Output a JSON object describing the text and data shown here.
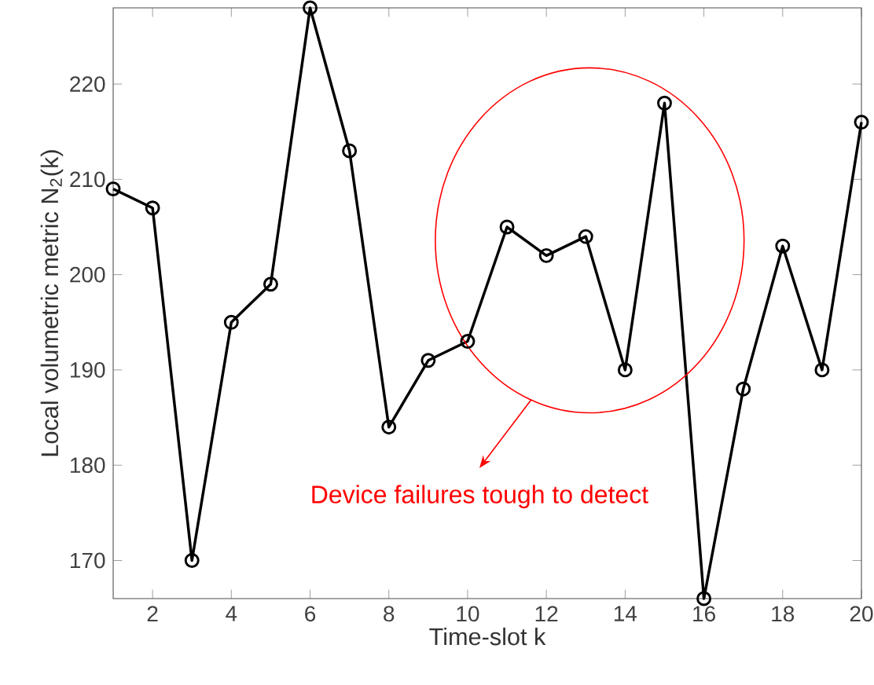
{
  "chart_data": {
    "type": "line",
    "xlabel": "Time-slot k",
    "ylabel": "Local volumetric metric N$_{2}$(k)",
    "x": [
      1,
      2,
      3,
      4,
      5,
      6,
      7,
      8,
      9,
      10,
      11,
      12,
      13,
      14,
      15,
      16,
      17,
      18,
      19,
      20
    ],
    "series": [
      {
        "color": "#000000",
        "values": [
          209,
          207,
          170,
          195,
          199,
          228,
          213,
          184,
          191,
          193,
          205,
          202,
          204,
          190,
          218,
          166,
          188,
          203,
          190,
          216
        ]
      }
    ],
    "xlim": [
      1,
      20
    ],
    "xticks": [
      2,
      4,
      6,
      8,
      10,
      12,
      14,
      16,
      18,
      20
    ],
    "ylim": [
      166,
      228
    ],
    "yticks": [
      170,
      180,
      190,
      200,
      210,
      220
    ],
    "marker": "circle",
    "line_style": "solid",
    "annotations": [
      "Device failures tough to detect"
    ]
  }
}
